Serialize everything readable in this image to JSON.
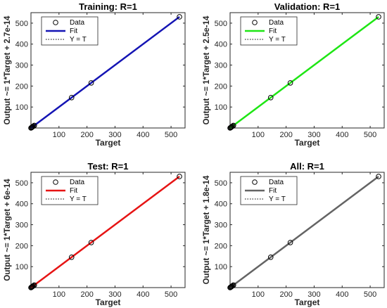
{
  "chart_data": [
    {
      "type": "scatter",
      "title": "Training: R=1",
      "xlabel": "Target",
      "ylabel": "Output ~= 1*Target + 2.7e-14",
      "xlim": [
        0,
        550
      ],
      "ylim": [
        0,
        550
      ],
      "xticks": [
        "100",
        "200",
        "300",
        "400",
        "500"
      ],
      "yticks": [
        "100",
        "200",
        "300",
        "400",
        "500"
      ],
      "fit_color": "#1414b4",
      "legend": {
        "placement": "top-left",
        "entries": [
          "Data",
          "Fit",
          "Y = T"
        ]
      },
      "fit_line": [
        [
          0,
          0
        ],
        [
          530,
          530
        ]
      ],
      "data_points": [
        [
          0,
          0
        ],
        [
          2,
          2
        ],
        [
          4,
          4
        ],
        [
          6,
          6
        ],
        [
          9,
          9
        ],
        [
          12,
          12
        ],
        [
          145,
          145
        ],
        [
          215,
          215
        ],
        [
          530,
          530
        ]
      ]
    },
    {
      "type": "scatter",
      "title": "Validation: R=1",
      "xlabel": "Target",
      "ylabel": "Output ~= 1*Target + 2.5e-14",
      "xlim": [
        0,
        550
      ],
      "ylim": [
        0,
        550
      ],
      "xticks": [
        "100",
        "200",
        "300",
        "400",
        "500"
      ],
      "yticks": [
        "100",
        "200",
        "300",
        "400",
        "500"
      ],
      "fit_color": "#1ee614",
      "legend": {
        "placement": "top-left",
        "entries": [
          "Data",
          "Fit",
          "Y = T"
        ]
      },
      "fit_line": [
        [
          0,
          0
        ],
        [
          530,
          530
        ]
      ],
      "data_points": [
        [
          0,
          0
        ],
        [
          2,
          2
        ],
        [
          4,
          4
        ],
        [
          6,
          6
        ],
        [
          9,
          9
        ],
        [
          12,
          12
        ],
        [
          145,
          145
        ],
        [
          215,
          215
        ],
        [
          530,
          530
        ]
      ]
    },
    {
      "type": "scatter",
      "title": "Test: R=1",
      "xlabel": "Target",
      "ylabel": "Output ~= 1*Target + 6e-14",
      "xlim": [
        0,
        550
      ],
      "ylim": [
        0,
        550
      ],
      "xticks": [
        "100",
        "200",
        "300",
        "400",
        "500"
      ],
      "yticks": [
        "100",
        "200",
        "300",
        "400",
        "500"
      ],
      "fit_color": "#e61414",
      "legend": {
        "placement": "top-left",
        "entries": [
          "Data",
          "Fit",
          "Y = T"
        ]
      },
      "fit_line": [
        [
          0,
          0
        ],
        [
          530,
          530
        ]
      ],
      "data_points": [
        [
          0,
          0
        ],
        [
          2,
          2
        ],
        [
          4,
          4
        ],
        [
          6,
          6
        ],
        [
          9,
          9
        ],
        [
          12,
          12
        ],
        [
          145,
          145
        ],
        [
          215,
          215
        ],
        [
          530,
          530
        ]
      ]
    },
    {
      "type": "scatter",
      "title": "All: R=1",
      "xlabel": "Target",
      "ylabel": "Output ~= 1*Target + 1.8e-14",
      "xlim": [
        0,
        550
      ],
      "ylim": [
        0,
        550
      ],
      "xticks": [
        "100",
        "200",
        "300",
        "400",
        "500"
      ],
      "yticks": [
        "100",
        "200",
        "300",
        "400",
        "500"
      ],
      "fit_color": "#646464",
      "legend": {
        "placement": "top-left",
        "entries": [
          "Data",
          "Fit",
          "Y = T"
        ]
      },
      "fit_line": [
        [
          0,
          0
        ],
        [
          530,
          530
        ]
      ],
      "data_points": [
        [
          0,
          0
        ],
        [
          2,
          2
        ],
        [
          4,
          4
        ],
        [
          6,
          6
        ],
        [
          9,
          9
        ],
        [
          12,
          12
        ],
        [
          145,
          145
        ],
        [
          215,
          215
        ],
        [
          530,
          530
        ]
      ]
    }
  ]
}
